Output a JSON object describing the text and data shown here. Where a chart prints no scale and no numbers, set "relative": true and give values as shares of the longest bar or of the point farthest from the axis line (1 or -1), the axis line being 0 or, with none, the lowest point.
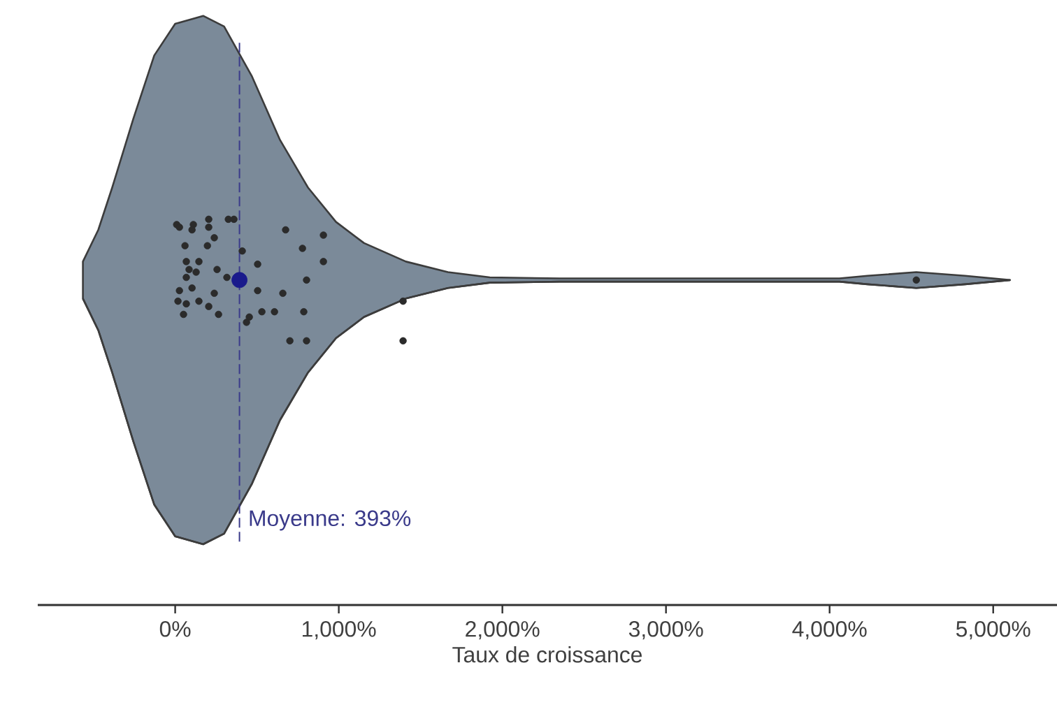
{
  "chart_data": {
    "type": "area",
    "relative": true,
    "xlabel": "Taux de croissance",
    "xlim": [
      -840,
      5390
    ],
    "xticks": [
      {
        "value": 0,
        "label": "0%"
      },
      {
        "value": 1000,
        "label": "1,000%"
      },
      {
        "value": 2000,
        "label": "2,000%"
      },
      {
        "value": 3000,
        "label": "3,000%"
      },
      {
        "value": 4000,
        "label": "4,000%"
      },
      {
        "value": 5000,
        "label": "5,000%"
      }
    ],
    "grid": false,
    "series": [
      {
        "color": "#7b8a99",
        "x": [
          -564,
          -470,
          -385,
          -256,
          -128,
          0,
          171,
          299,
          470,
          641,
          812,
          983,
          1154,
          1410,
          1667,
          1923,
          2350,
          4060,
          4231,
          4530,
          4829,
          5103
        ],
        "values": [
          0.535,
          0.595,
          0.675,
          0.805,
          0.925,
          0.985,
          1.0,
          0.98,
          0.885,
          0.765,
          0.675,
          0.61,
          0.57,
          0.535,
          0.515,
          0.505,
          0.503,
          0.503,
          0.508,
          0.515,
          0.508,
          0.5
        ]
      },
      {
        "type": "line",
        "color": "#3c3c3c",
        "x": [
          -564,
          -470,
          -385,
          -256,
          -128,
          0,
          171,
          299,
          470,
          641,
          812,
          983,
          1154,
          1410,
          1667,
          1923,
          2350,
          4060,
          4231,
          4530,
          4829,
          5103
        ],
        "values": [
          0.465,
          0.405,
          0.325,
          0.195,
          0.075,
          0.015,
          0,
          0.02,
          0.115,
          0.235,
          0.325,
          0.39,
          0.43,
          0.465,
          0.485,
          0.495,
          0.497,
          0.497,
          0.492,
          0.485,
          0.492,
          0.5
        ]
      },
      {
        "type": "scatter",
        "color": "#2b2b2b",
        "x": [
          9,
          26,
          111,
          103,
          205,
          205,
          239,
          325,
          359,
          60,
          197,
          68,
          145,
          85,
          128,
          68,
          26,
          103,
          17,
          68,
          145,
          51,
          205,
          239,
          265,
          256,
          316,
          410,
          504,
          504,
          453,
          436,
          530,
          607,
          658,
          675,
          778,
          906,
          906,
          803,
          786,
          701,
          803,
          1393,
          1393,
          4530
        ],
        "values": [
          0.605,
          0.6,
          0.605,
          0.595,
          0.615,
          0.6,
          0.58,
          0.615,
          0.615,
          0.565,
          0.565,
          0.535,
          0.535,
          0.52,
          0.515,
          0.505,
          0.48,
          0.485,
          0.46,
          0.455,
          0.46,
          0.435,
          0.45,
          0.475,
          0.435,
          0.52,
          0.505,
          0.555,
          0.53,
          0.48,
          0.43,
          0.42,
          0.44,
          0.44,
          0.475,
          0.595,
          0.56,
          0.585,
          0.535,
          0.5,
          0.44,
          0.385,
          0.385,
          0.46,
          0.385,
          0.5
        ]
      },
      {
        "type": "scatter",
        "color": "#1a1a8c",
        "x": [
          393
        ],
        "values": [
          0.5
        ]
      }
    ],
    "ref_lines": [
      {
        "axis": "x",
        "value": 393,
        "label": "Moyenne: 393%",
        "color": "#3a3a8a",
        "line_style": "dashed"
      }
    ]
  }
}
